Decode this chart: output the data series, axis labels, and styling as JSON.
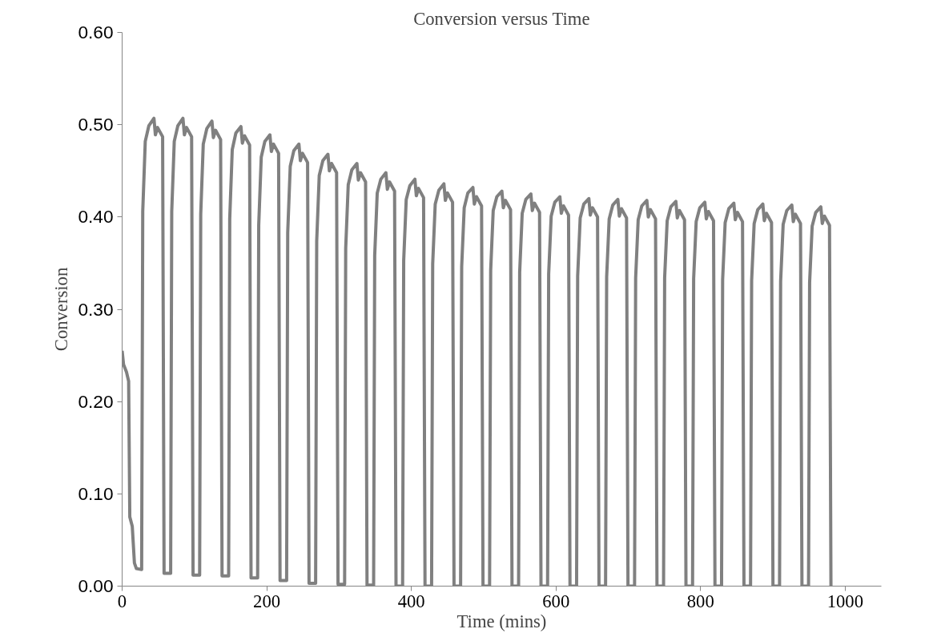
{
  "chart_data": {
    "type": "line",
    "title": "Conversion versus Time",
    "xlabel": "Time (mins)",
    "ylabel": "Conversion",
    "color": "#808080",
    "marker": "none",
    "line_style": "solid",
    "grid": false,
    "xlim": [
      0,
      1050
    ],
    "xticks": [
      0,
      200,
      400,
      600,
      800,
      1000
    ],
    "ylim": [
      0,
      0.6
    ],
    "yticks": [
      {
        "value": 0,
        "label": "0.00"
      },
      {
        "value": 0.1,
        "label": "0.10"
      },
      {
        "value": 0.2,
        "label": "0.20"
      },
      {
        "value": 0.3,
        "label": "0.30"
      },
      {
        "value": 0.4,
        "label": "0.40"
      },
      {
        "value": 0.5,
        "label": "0.50"
      },
      {
        "value": 0.6,
        "label": "0.60"
      }
    ],
    "x": [
      0,
      2,
      6,
      9,
      10.6,
      14,
      17,
      19.7,
      27,
      28.5,
      32,
      37,
      44,
      46,
      49,
      56,
      58,
      67.1,
      68.6,
      72.1,
      77.1,
      84.1,
      86.1,
      89.1,
      96.1,
      98.1,
      107.2,
      108.7,
      112.2,
      117.2,
      124.2,
      126.2,
      129.2,
      136.2,
      138.2,
      147.3,
      148.8,
      152.3,
      157.3,
      164.3,
      166.3,
      169.3,
      176.3,
      178.3,
      187.4,
      188.9,
      192.4,
      197.4,
      204.4,
      206.4,
      209.4,
      216.4,
      218.4,
      227.5,
      229,
      232.5,
      237.5,
      244.5,
      246.5,
      249.5,
      256.5,
      258.5,
      267.6,
      269.1,
      272.6,
      277.6,
      284.6,
      286.6,
      289.6,
      296.6,
      298.6,
      307.7,
      309.2,
      312.7,
      317.7,
      324.7,
      326.7,
      329.7,
      336.7,
      338.7,
      347.8,
      349.3,
      352.8,
      357.8,
      364.8,
      366.8,
      369.8,
      376.8,
      378.8,
      387.9,
      389.4,
      392.9,
      397.9,
      404.9,
      406.9,
      409.9,
      416.9,
      418.9,
      428,
      429.5,
      433,
      438,
      445,
      447,
      450,
      457,
      459,
      468.1,
      469.6,
      473.1,
      478.1,
      485.1,
      487.1,
      490.1,
      497.1,
      499.1,
      508.2,
      509.7,
      513.2,
      518.2,
      525.2,
      527.2,
      530.2,
      537.2,
      539.2,
      548.3,
      549.8,
      553.3,
      558.3,
      565.3,
      567.3,
      570.3,
      577.3,
      579.3,
      588.4,
      589.9,
      593.4,
      598.4,
      605.4,
      607.4,
      610.4,
      617.4,
      619.4,
      628.5,
      630,
      633.5,
      638.5,
      645.5,
      647.5,
      650.5,
      657.5,
      659.5,
      668.6,
      670.1,
      673.6,
      678.6,
      685.6,
      687.6,
      690.6,
      697.6,
      699.6,
      708.7,
      710.2,
      713.7,
      718.7,
      725.7,
      727.7,
      730.7,
      737.7,
      739.7,
      748.8,
      750.3,
      753.8,
      758.8,
      765.8,
      767.8,
      770.8,
      777.8,
      779.8,
      788.9,
      790.4,
      793.9,
      798.9,
      805.9,
      807.9,
      810.9,
      817.9,
      819.9,
      829,
      830.5,
      834,
      839,
      846,
      848,
      851,
      858,
      860,
      869.1,
      870.6,
      874.1,
      879.1,
      886.1,
      888.1,
      891.1,
      898.1,
      900.1,
      909.2,
      910.7,
      914.2,
      919.2,
      926.2,
      928.2,
      931.2,
      938.2,
      940.2,
      949.3,
      950.8,
      954.3,
      959.3,
      966.3,
      968.3,
      971.3,
      978.3,
      980.3
    ],
    "values": [
      0.255,
      0.24,
      0.232,
      0.222,
      0.075,
      0.065,
      0.025,
      0.019,
      0.018,
      0.406,
      0.482,
      0.499,
      0.507,
      0.489,
      0.497,
      0.487,
      0.014,
      0.014,
      0.406,
      0.482,
      0.499,
      0.507,
      0.489,
      0.497,
      0.487,
      0.012,
      0.012,
      0.403,
      0.479,
      0.496,
      0.504,
      0.486,
      0.494,
      0.484,
      0.011,
      0.011,
      0.398,
      0.473,
      0.491,
      0.498,
      0.48,
      0.488,
      0.478,
      0.009,
      0.009,
      0.391,
      0.465,
      0.482,
      0.489,
      0.471,
      0.479,
      0.469,
      0.006,
      0.006,
      0.383,
      0.455,
      0.472,
      0.479,
      0.461,
      0.469,
      0.459,
      0.003,
      0.003,
      0.374,
      0.445,
      0.461,
      0.468,
      0.45,
      0.458,
      0.448,
      0.002,
      0.002,
      0.366,
      0.435,
      0.451,
      0.458,
      0.44,
      0.448,
      0.438,
      0.001,
      0.001,
      0.358,
      0.426,
      0.441,
      0.448,
      0.43,
      0.438,
      0.428,
      0,
      0,
      0.353,
      0.419,
      0.434,
      0.441,
      0.423,
      0.431,
      0.421,
      0,
      0,
      0.349,
      0.414,
      0.429,
      0.436,
      0.418,
      0.426,
      0.416,
      0,
      0,
      0.346,
      0.41,
      0.426,
      0.432,
      0.414,
      0.422,
      0.412,
      0,
      0,
      0.342,
      0.407,
      0.422,
      0.428,
      0.41,
      0.418,
      0.408,
      0,
      0,
      0.34,
      0.404,
      0.419,
      0.425,
      0.407,
      0.415,
      0.405,
      0,
      0,
      0.338,
      0.401,
      0.416,
      0.422,
      0.404,
      0.412,
      0.402,
      0,
      0,
      0.336,
      0.399,
      0.414,
      0.42,
      0.402,
      0.41,
      0.4,
      0,
      0,
      0.335,
      0.398,
      0.413,
      0.419,
      0.401,
      0.409,
      0.399,
      0,
      0,
      0.334,
      0.397,
      0.412,
      0.418,
      0.4,
      0.408,
      0.398,
      0,
      0,
      0.334,
      0.396,
      0.411,
      0.417,
      0.399,
      0.407,
      0.397,
      0,
      0,
      0.333,
      0.395,
      0.41,
      0.416,
      0.398,
      0.406,
      0.396,
      0,
      0,
      0.332,
      0.394,
      0.409,
      0.415,
      0.397,
      0.405,
      0.395,
      0,
      0,
      0.331,
      0.393,
      0.408,
      0.414,
      0.396,
      0.404,
      0.394,
      0,
      0,
      0.33,
      0.392,
      0.407,
      0.413,
      0.395,
      0.403,
      0.393,
      0,
      0,
      0.329,
      0.39,
      0.405,
      0.411,
      0.393,
      0.401,
      0.391,
      0
    ]
  }
}
